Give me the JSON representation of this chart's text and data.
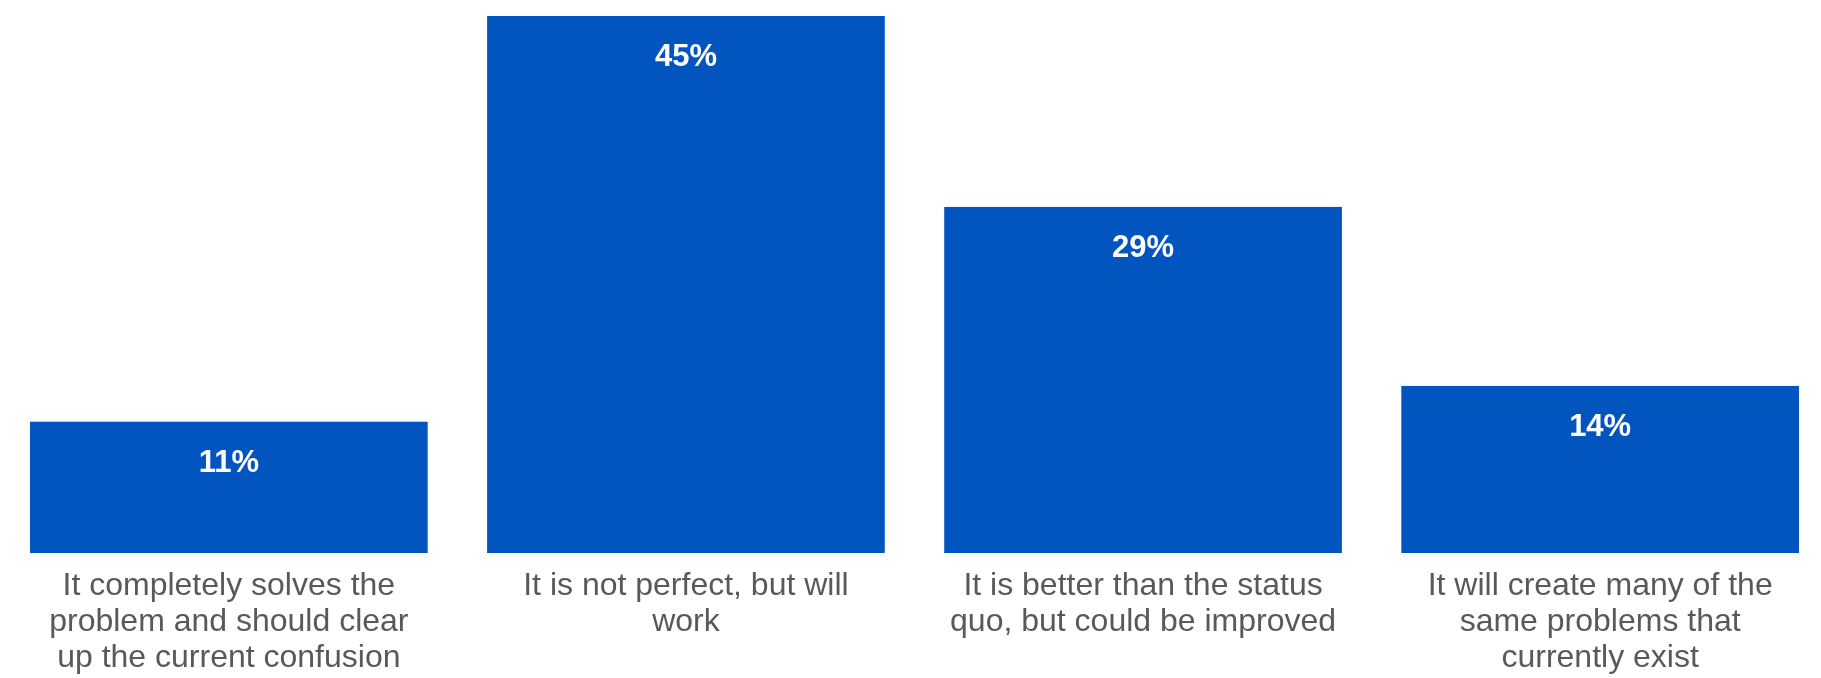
{
  "chart_data": {
    "type": "bar",
    "categories": [
      "It completely solves the problem and should clear up the current confusion",
      "It is not perfect, but will work",
      "It is better than the status quo, but could be improved",
      "It will create many of the same problems that currently exist"
    ],
    "values": [
      11,
      45,
      29,
      14
    ],
    "value_labels": [
      "11%",
      "45%",
      "29%",
      "14%"
    ],
    "color": "#0255be"
  }
}
